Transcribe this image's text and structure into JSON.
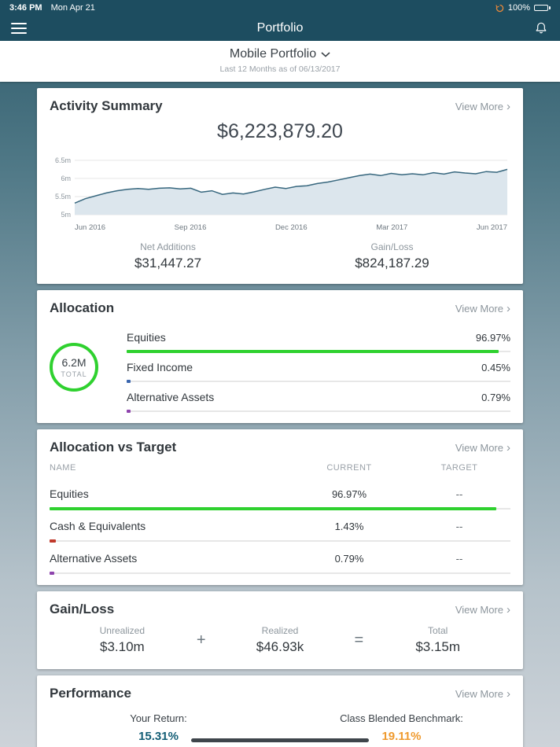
{
  "status_bar": {
    "time": "3:46 PM",
    "date": "Mon Apr 21",
    "battery": "100%"
  },
  "nav": {
    "title": "Portfolio"
  },
  "header": {
    "portfolio_name": "Mobile Portfolio",
    "subtitle": "Last 12 Months as of 06/13/2017"
  },
  "colors": {
    "navbar": "#1D4D60",
    "green": "#2FD12F",
    "orange": "#EF9A2E",
    "teal_value": "#125D75"
  },
  "activity_summary": {
    "title": "Activity Summary",
    "view_more": "View More",
    "total": "$6,223,879.20",
    "net_additions": {
      "label": "Net Additions",
      "value": "$31,447.27"
    },
    "gain_loss": {
      "label": "Gain/Loss",
      "value": "$824,187.29"
    },
    "chart_data": {
      "type": "area",
      "title": "Portfolio value, last 12 months",
      "x_ticks": [
        "Jun 2016",
        "Sep 2016",
        "Dec 2016",
        "Mar 2017",
        "Jun 2017"
      ],
      "y_ticks": [
        {
          "label": "6.5m",
          "value": 6.5
        },
        {
          "label": "6m",
          "value": 6.0
        },
        {
          "label": "5.5m",
          "value": 5.5
        },
        {
          "label": "5m",
          "value": 5.0
        }
      ],
      "ylim": [
        5.0,
        6.65
      ],
      "values": [
        5.32,
        5.44,
        5.52,
        5.6,
        5.66,
        5.7,
        5.72,
        5.7,
        5.73,
        5.74,
        5.71,
        5.73,
        5.62,
        5.66,
        5.56,
        5.6,
        5.57,
        5.63,
        5.7,
        5.76,
        5.72,
        5.78,
        5.8,
        5.86,
        5.9,
        5.96,
        6.02,
        6.08,
        6.12,
        6.08,
        6.14,
        6.1,
        6.13,
        6.1,
        6.16,
        6.12,
        6.18,
        6.15,
        6.13,
        6.19,
        6.17,
        6.25
      ],
      "colors": {
        "line": "#37677E",
        "fill": "#DCE6ED",
        "grid": "#E6E6E6"
      }
    }
  },
  "allocation": {
    "title": "Allocation",
    "view_more": "View More",
    "donut": {
      "value": "6.2M",
      "label": "TOTAL",
      "ring_color": "#2FD12F"
    },
    "rows": [
      {
        "label": "Equities",
        "value": "96.97%",
        "pct": 96.97,
        "color": "#2FD12F"
      },
      {
        "label": "Fixed Income",
        "value": "0.45%",
        "pct": 0.45,
        "color": "#3A66AE"
      },
      {
        "label": "Alternative Assets",
        "value": "0.79%",
        "pct": 0.79,
        "color": "#8E44AD"
      }
    ]
  },
  "allocation_vs_target": {
    "title": "Allocation vs Target",
    "view_more": "View More",
    "headers": {
      "name": "NAME",
      "current": "CURRENT",
      "target": "TARGET"
    },
    "rows": [
      {
        "name": "Equities",
        "current": "96.97%",
        "target": "--",
        "pct": 96.97,
        "color": "#2FD12F"
      },
      {
        "name": "Cash & Equivalents",
        "current": "1.43%",
        "target": "--",
        "pct": 1.43,
        "color": "#C0392B"
      },
      {
        "name": "Alternative Assets",
        "current": "0.79%",
        "target": "--",
        "pct": 0.79,
        "color": "#8E44AD"
      }
    ]
  },
  "gain_loss": {
    "title": "Gain/Loss",
    "view_more": "View More",
    "unrealized": {
      "label": "Unrealized",
      "value": "$3.10m"
    },
    "plus": "+",
    "realized": {
      "label": "Realized",
      "value": "$46.93k"
    },
    "equals": "=",
    "total": {
      "label": "Total",
      "value": "$3.15m"
    }
  },
  "performance": {
    "title": "Performance",
    "view_more": "View More",
    "your_return": {
      "label": "Your Return:",
      "value": "15.31%",
      "color": "#125D75"
    },
    "benchmark": {
      "label": "Class Blended Benchmark:",
      "value": "19.11%",
      "color": "#EF9A2E"
    }
  }
}
